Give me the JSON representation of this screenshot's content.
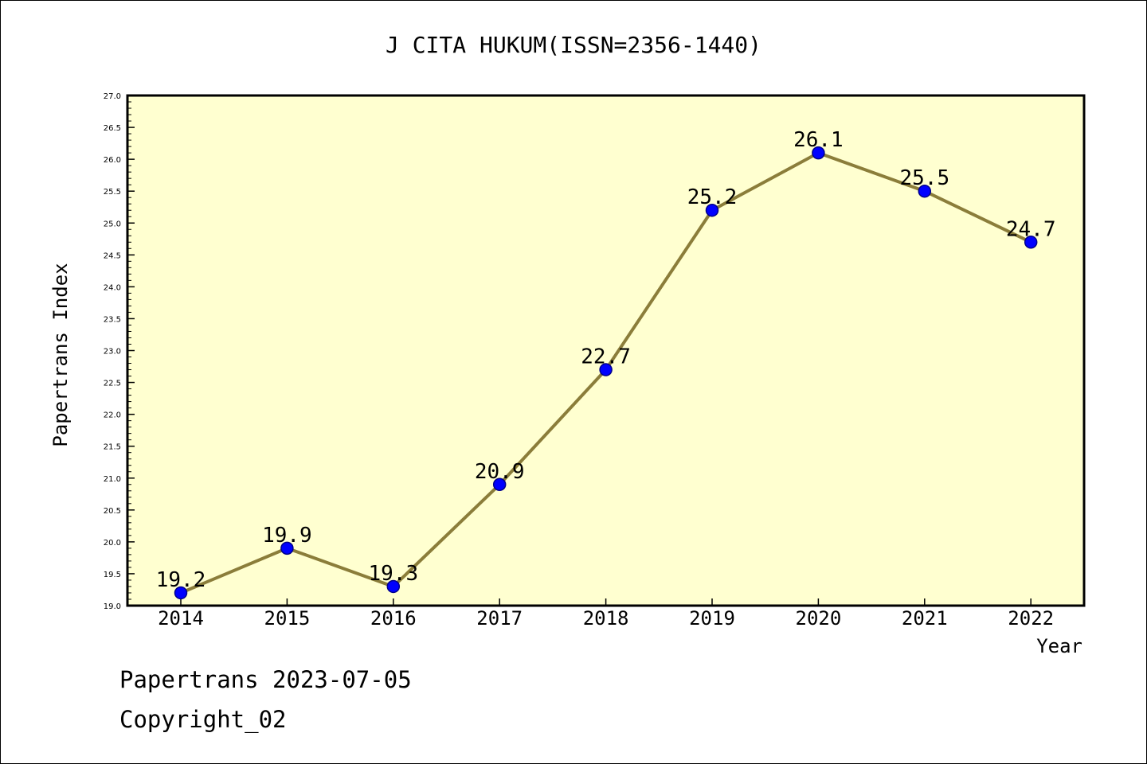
{
  "chart_data": {
    "type": "line",
    "title": "J CITA HUKUM(ISSN=2356-1440)",
    "xlabel": "Year",
    "ylabel": "Papertrans Index",
    "categories": [
      "2014",
      "2015",
      "2016",
      "2017",
      "2018",
      "2019",
      "2020",
      "2021",
      "2022"
    ],
    "series": [
      {
        "values": [
          19.2,
          19.9,
          19.3,
          20.9,
          22.7,
          25.2,
          26.1,
          25.5,
          24.7
        ]
      }
    ],
    "data_labels": [
      "19.2",
      "19.9",
      "19.3",
      "20.9",
      "22.7",
      "25.2",
      "26.1",
      "25.5",
      "24.7"
    ],
    "ylim": [
      19.0,
      27.0
    ],
    "yticks": [
      "19.0",
      "19.5",
      "20.0",
      "20.5",
      "21.0",
      "21.5",
      "22.0",
      "22.5",
      "23.0",
      "23.5",
      "24.0",
      "24.5",
      "25.0",
      "25.5",
      "26.0",
      "26.5",
      "27.0"
    ],
    "grid": false,
    "colors": {
      "plot_background": "#ffffd0",
      "line": "#8b7d3a",
      "marker_fill": "#0000ff",
      "marker_edge": "#00008b"
    }
  },
  "footer": {
    "line1": "Papertrans 2023-07-05",
    "line2": "Copyright_02"
  }
}
